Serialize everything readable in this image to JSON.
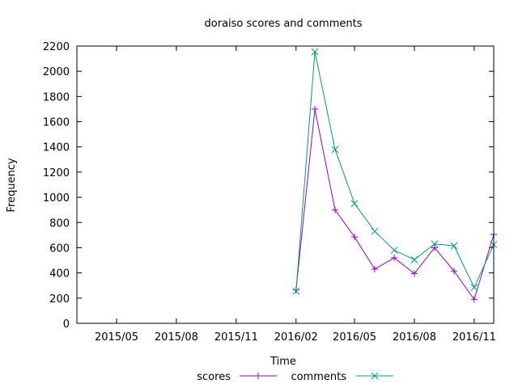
{
  "chart_data": {
    "type": "line",
    "title": "doraiso scores and comments",
    "xlabel": "Time",
    "ylabel": "Frequency",
    "xlim": [
      "2015-03-01",
      "2016-12-01"
    ],
    "ylim": [
      0,
      2200
    ],
    "y_ticks": [
      0,
      200,
      400,
      600,
      800,
      1000,
      1200,
      1400,
      1600,
      1800,
      2000,
      2200
    ],
    "x_ticks": [
      {
        "date": "2015-05-01",
        "label": "2015/05"
      },
      {
        "date": "2015-08-01",
        "label": "2015/08"
      },
      {
        "date": "2015-11-01",
        "label": "2015/11"
      },
      {
        "date": "2016-02-01",
        "label": "2016/02"
      },
      {
        "date": "2016-05-01",
        "label": "2016/05"
      },
      {
        "date": "2016-08-01",
        "label": "2016/08"
      },
      {
        "date": "2016-11-01",
        "label": "2016/11"
      }
    ],
    "x": [
      "2016-02-01",
      "2016-03-01",
      "2016-04-01",
      "2016-05-01",
      "2016-06-01",
      "2016-07-01",
      "2016-08-01",
      "2016-09-01",
      "2016-10-01",
      "2016-11-01",
      "2016-12-01"
    ],
    "series": [
      {
        "name": "scores",
        "color": "#9400d3",
        "marker": "plus",
        "values": [
          265,
          1700,
          900,
          685,
          430,
          520,
          395,
          600,
          415,
          190,
          705
        ]
      },
      {
        "name": "comments",
        "color": "#009e73",
        "marker": "cross",
        "values": [
          255,
          2155,
          1380,
          950,
          730,
          580,
          505,
          630,
          615,
          285,
          625
        ]
      }
    ],
    "grid": false,
    "legend": "bottom"
  }
}
